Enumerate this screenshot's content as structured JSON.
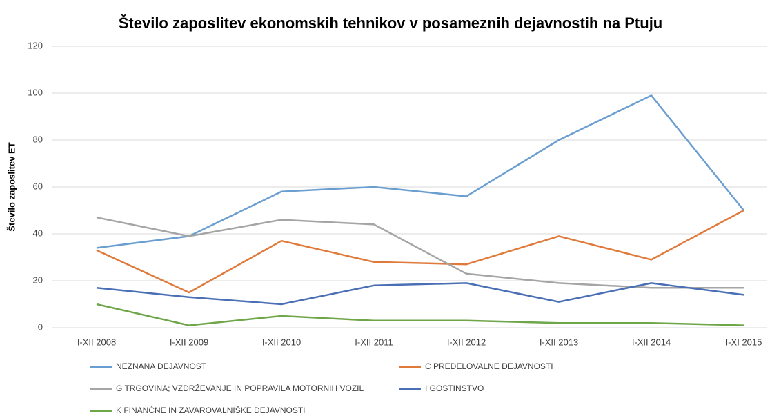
{
  "chart_data": {
    "type": "line",
    "title": "Število zaposlitev ekonomskih tehnikov v posameznih dejavnostih na Ptuju",
    "y_label": "Število zaposlitev ET",
    "categories": [
      "I-XII 2008",
      "I-XII 2009",
      "I-XII 2010",
      "I-XII 2011",
      "I-XII 2012",
      "I-XII 2013",
      "I-XII 2014",
      "I-XI 2015"
    ],
    "series": [
      {
        "name": "NEZNANA DEJAVNOST",
        "color": "#6a9ed0",
        "values": [
          34,
          39,
          58,
          60,
          56,
          80,
          99,
          50
        ]
      },
      {
        "name": "C PREDELOVALNE DEJAVNOSTI",
        "color": "#e07a3a",
        "values": [
          33,
          15,
          37,
          28,
          27,
          39,
          29,
          50
        ]
      },
      {
        "name": "G TRGOVINA; VZDRŽEVANJE IN POPRAVILA MOTORNIH VOZIL",
        "color": "#a5a5a5",
        "values": [
          47,
          39,
          46,
          44,
          23,
          19,
          17,
          17
        ]
      },
      {
        "name": "I GOSTINSTVO",
        "color": "#4a6fb5",
        "values": [
          17,
          13,
          10,
          18,
          19,
          11,
          19,
          14
        ]
      },
      {
        "name": "K FINANČNE IN ZAVAROVALNIŠKE DEJAVNOSTI",
        "color": "#6fa64a",
        "values": [
          10,
          1,
          5,
          3,
          3,
          2,
          2,
          1
        ]
      }
    ],
    "ylim": [
      0,
      120
    ],
    "yticks": [
      0,
      20,
      40,
      60,
      80,
      100,
      120
    ],
    "grid": true
  }
}
